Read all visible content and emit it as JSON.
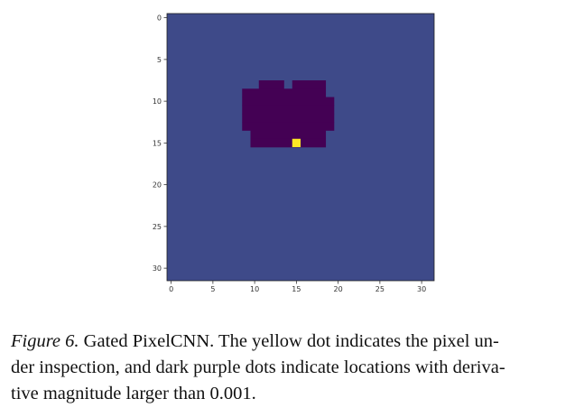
{
  "chart_data": {
    "type": "heatmap",
    "grid_size": 32,
    "x_ticks": [
      "0",
      "5",
      "10",
      "15",
      "20",
      "25",
      "30"
    ],
    "y_ticks": [
      "0",
      "5",
      "10",
      "15",
      "20",
      "25",
      "30"
    ],
    "xlim": [
      -0.5,
      31.5
    ],
    "ylim": [
      31.5,
      -0.5
    ],
    "colors": {
      "background": "#3e4a89",
      "region": "#440154",
      "inspected": "#fde725"
    },
    "region_rows": [
      {
        "row": 8,
        "cols": [
          [
            11,
            13
          ],
          [
            15,
            18
          ]
        ]
      },
      {
        "row": 9,
        "cols": [
          [
            9,
            18
          ]
        ]
      },
      {
        "row": 10,
        "cols": [
          [
            9,
            19
          ]
        ]
      },
      {
        "row": 11,
        "cols": [
          [
            9,
            19
          ]
        ]
      },
      {
        "row": 12,
        "cols": [
          [
            9,
            19
          ]
        ]
      },
      {
        "row": 13,
        "cols": [
          [
            9,
            19
          ]
        ]
      },
      {
        "row": 14,
        "cols": [
          [
            10,
            18
          ]
        ]
      },
      {
        "row": 15,
        "cols": [
          [
            10,
            18
          ]
        ]
      }
    ],
    "inspected_pixel": {
      "row": 15,
      "col": 15
    }
  },
  "caption": {
    "label": "Figure 6.",
    "lines": [
      " Gated PixelCNN. The yellow dot indicates the pixel un-",
      "der inspection, and dark purple dots indicate locations with deriva-",
      "tive magnitude larger than 0.001."
    ]
  }
}
